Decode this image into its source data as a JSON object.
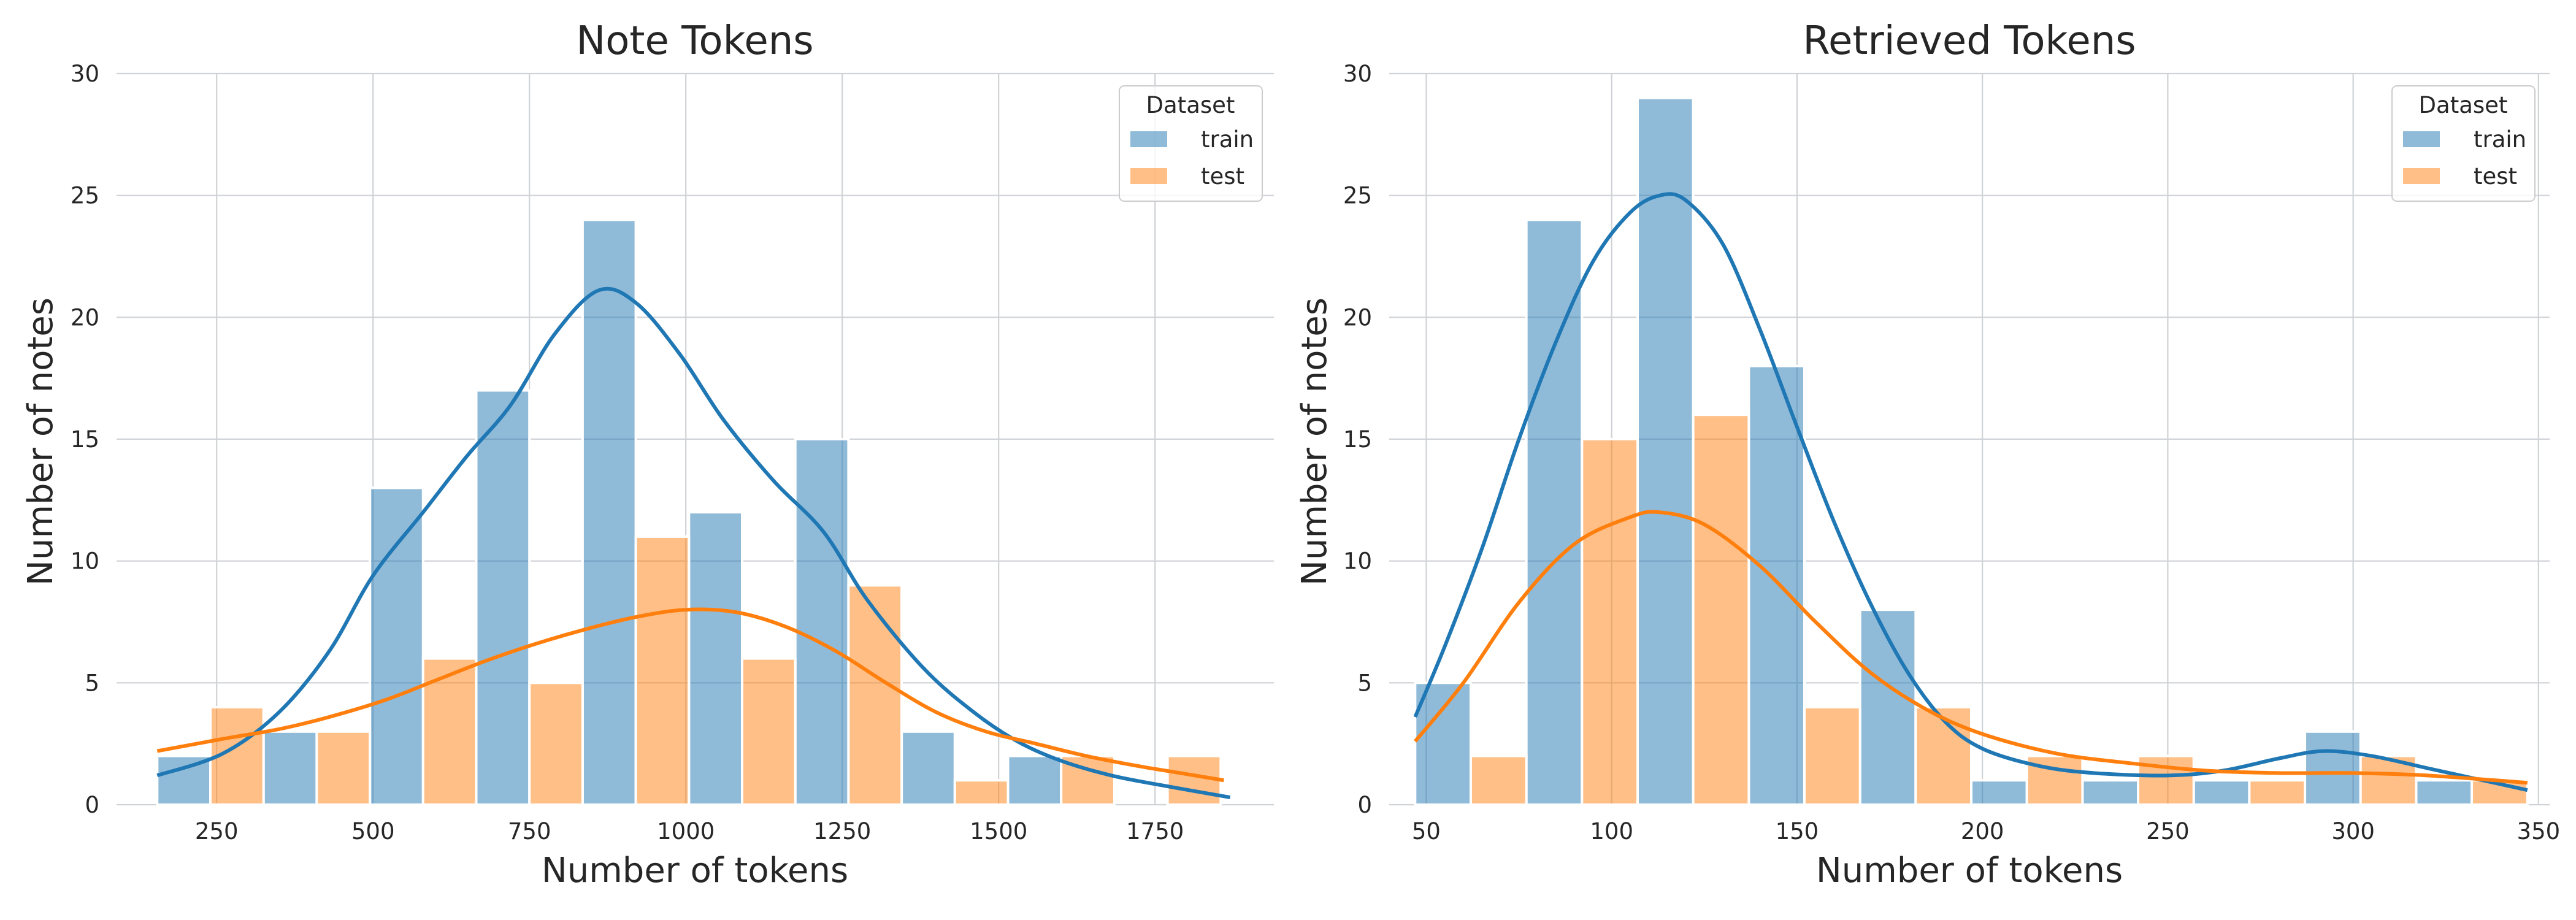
{
  "chart_data": [
    {
      "type": "bar",
      "title": "Note Tokens",
      "xlabel": "Number of tokens",
      "ylabel": "Number of notes",
      "xlim": [
        90,
        1940
      ],
      "ylim": [
        0,
        30
      ],
      "xticks": [
        250,
        500,
        750,
        1000,
        1250,
        1500,
        1750
      ],
      "xtick_labels": [
        "250",
        "500",
        "750",
        "1000",
        "1250",
        "1500",
        "1750"
      ],
      "yticks": [
        0,
        5,
        10,
        15,
        20,
        25,
        30
      ],
      "ytick_labels": [
        "0",
        "5",
        "10",
        "15",
        "20",
        "25",
        "30"
      ],
      "bin_edges": [
        155,
        240,
        325,
        410,
        495,
        580,
        665,
        750,
        835,
        920,
        1005,
        1090,
        1175,
        1260,
        1345,
        1430,
        1515,
        1600,
        1685,
        1770,
        1855
      ],
      "series": [
        {
          "name": "train",
          "color": "#1f77b4",
          "values": [
            2,
            0,
            3,
            0,
            13,
            0,
            17,
            0,
            24,
            0,
            12,
            0,
            15,
            0,
            3,
            0,
            2,
            0,
            0,
            0
          ],
          "kde": [
            [
              155,
              1.2
            ],
            [
              260,
              2.1
            ],
            [
              350,
              3.8
            ],
            [
              430,
              6.3
            ],
            [
              500,
              9.4
            ],
            [
              580,
              12.0
            ],
            [
              650,
              14.3
            ],
            [
              720,
              16.4
            ],
            [
              790,
              19.3
            ],
            [
              860,
              21.1
            ],
            [
              920,
              20.6
            ],
            [
              990,
              18.5
            ],
            [
              1060,
              15.8
            ],
            [
              1140,
              13.3
            ],
            [
              1220,
              11.2
            ],
            [
              1290,
              8.4
            ],
            [
              1380,
              5.6
            ],
            [
              1460,
              3.8
            ],
            [
              1530,
              2.6
            ],
            [
              1600,
              1.8
            ],
            [
              1680,
              1.2
            ],
            [
              1760,
              0.8
            ],
            [
              1870,
              0.3
            ]
          ]
        },
        {
          "name": "test",
          "color": "#ff7f0e",
          "values": [
            0,
            4,
            0,
            3,
            0,
            6,
            0,
            5,
            0,
            11,
            0,
            6,
            0,
            9,
            0,
            1,
            0,
            2,
            0,
            2
          ],
          "kde": [
            [
              155,
              2.2
            ],
            [
              260,
              2.7
            ],
            [
              350,
              3.1
            ],
            [
              430,
              3.6
            ],
            [
              520,
              4.3
            ],
            [
              600,
              5.1
            ],
            [
              680,
              5.9
            ],
            [
              760,
              6.6
            ],
            [
              840,
              7.2
            ],
            [
              920,
              7.7
            ],
            [
              1000,
              8.0
            ],
            [
              1080,
              7.9
            ],
            [
              1160,
              7.3
            ],
            [
              1240,
              6.3
            ],
            [
              1320,
              5.0
            ],
            [
              1400,
              3.8
            ],
            [
              1480,
              3.0
            ],
            [
              1560,
              2.5
            ],
            [
              1640,
              2.0
            ],
            [
              1720,
              1.6
            ],
            [
              1790,
              1.3
            ],
            [
              1860,
              1.0
            ]
          ]
        }
      ],
      "legend": {
        "title": "Dataset",
        "position": "top-right",
        "entries": [
          "train",
          "test"
        ]
      }
    },
    {
      "type": "bar",
      "title": "Retrieved Tokens",
      "xlabel": "Number of tokens",
      "ylabel": "Number of notes",
      "xlim": [
        40,
        353
      ],
      "ylim": [
        0,
        30
      ],
      "xticks": [
        50,
        100,
        150,
        200,
        250,
        300,
        350
      ],
      "xtick_labels": [
        "50",
        "100",
        "150",
        "200",
        "250",
        "300",
        "350"
      ],
      "yticks": [
        0,
        5,
        10,
        15,
        20,
        25,
        30
      ],
      "ytick_labels": [
        "0",
        "5",
        "10",
        "15",
        "20",
        "25",
        "30"
      ],
      "bin_edges": [
        47,
        62,
        77,
        92,
        107,
        122,
        137,
        152,
        167,
        182,
        197,
        212,
        227,
        242,
        257,
        272,
        287,
        302,
        317,
        332,
        347
      ],
      "series": [
        {
          "name": "train",
          "color": "#1f77b4",
          "values": [
            5,
            0,
            24,
            0,
            29,
            0,
            18,
            0,
            8,
            0,
            1,
            0,
            1,
            0,
            1,
            0,
            3,
            0,
            1,
            0
          ],
          "kde": [
            [
              47,
              3.6
            ],
            [
              55,
              6.5
            ],
            [
              65,
              10.5
            ],
            [
              75,
              15.0
            ],
            [
              85,
              19.0
            ],
            [
              95,
              22.3
            ],
            [
              105,
              24.3
            ],
            [
              113,
              25.0
            ],
            [
              120,
              24.8
            ],
            [
              130,
              23.0
            ],
            [
              140,
              19.5
            ],
            [
              150,
              15.5
            ],
            [
              160,
              11.6
            ],
            [
              170,
              8.2
            ],
            [
              180,
              5.4
            ],
            [
              190,
              3.4
            ],
            [
              200,
              2.3
            ],
            [
              215,
              1.6
            ],
            [
              230,
              1.3
            ],
            [
              250,
              1.2
            ],
            [
              265,
              1.4
            ],
            [
              280,
              1.9
            ],
            [
              292,
              2.2
            ],
            [
              305,
              2.0
            ],
            [
              320,
              1.5
            ],
            [
              335,
              1.0
            ],
            [
              347,
              0.6
            ]
          ]
        },
        {
          "name": "test",
          "color": "#ff7f0e",
          "values": [
            0,
            2,
            0,
            15,
            0,
            16,
            0,
            4,
            0,
            4,
            0,
            2,
            0,
            2,
            0,
            1,
            0,
            2,
            0,
            1
          ],
          "kde": [
            [
              47,
              2.6
            ],
            [
              60,
              5.0
            ],
            [
              75,
              8.3
            ],
            [
              90,
              10.7
            ],
            [
              105,
              11.8
            ],
            [
              113,
              12.0
            ],
            [
              125,
              11.5
            ],
            [
              140,
              9.8
            ],
            [
              155,
              7.5
            ],
            [
              170,
              5.4
            ],
            [
              185,
              3.9
            ],
            [
              200,
              2.9
            ],
            [
              220,
              2.1
            ],
            [
              240,
              1.7
            ],
            [
              260,
              1.4
            ],
            [
              280,
              1.3
            ],
            [
              300,
              1.3
            ],
            [
              320,
              1.2
            ],
            [
              347,
              0.9
            ]
          ]
        }
      ],
      "legend": {
        "title": "Dataset",
        "position": "top-right",
        "entries": [
          "train",
          "test"
        ]
      }
    }
  ]
}
